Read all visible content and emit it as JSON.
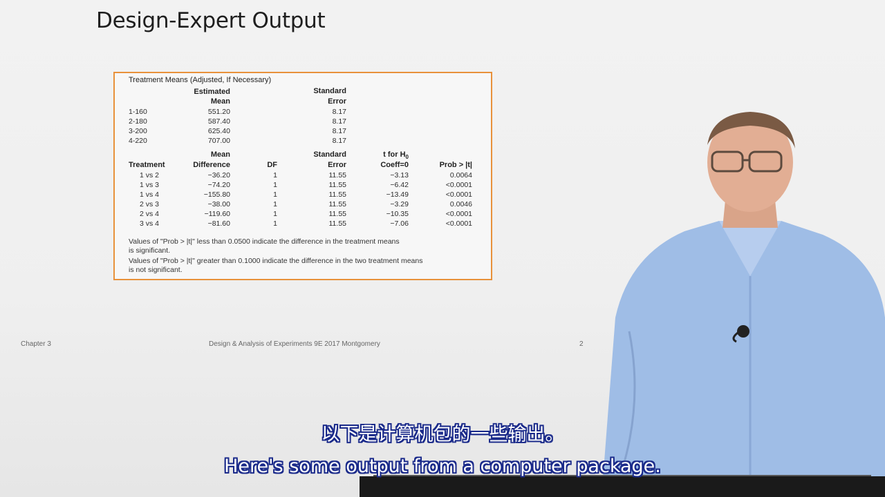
{
  "slide": {
    "title": "Design-Expert Output",
    "footer_left": "Chapter 3",
    "footer_center": "Design & Analysis of Experiments 9E 2017 Montgomery",
    "footer_right": "2"
  },
  "output": {
    "heading": "Treatment Means (Adjusted, If Necessary)",
    "means_headers": {
      "est_line1": "Estimated",
      "est_line2": "Mean",
      "se_line1": "Standard",
      "se_line2": "Error"
    },
    "means": [
      {
        "label": "1-160",
        "mean": "551.20",
        "se": "8.17"
      },
      {
        "label": "2-180",
        "mean": "587.40",
        "se": "8.17"
      },
      {
        "label": "3-200",
        "mean": "625.40",
        "se": "8.17"
      },
      {
        "label": "4-220",
        "mean": "707.00",
        "se": "8.17"
      }
    ],
    "diff_headers": {
      "treatment": "Treatment",
      "md_line1": "Mean",
      "md_line2": "Difference",
      "df": "DF",
      "se_line1": "Standard",
      "se_line2": "Error",
      "t_line1": "t for H",
      "t_sub": "0",
      "t_line2": "Coeff=0",
      "prob": "Prob > |t|"
    },
    "diffs": [
      {
        "treatment": "1 vs 2",
        "diff": "−36.20",
        "df": "1",
        "se": "11.55",
        "t": "−3.13",
        "prob": "0.0064"
      },
      {
        "treatment": "1 vs 3",
        "diff": "−74.20",
        "df": "1",
        "se": "11.55",
        "t": "−6.42",
        "prob": "<0.0001"
      },
      {
        "treatment": "1 vs 4",
        "diff": "−155.80",
        "df": "1",
        "se": "11.55",
        "t": "−13.49",
        "prob": "<0.0001"
      },
      {
        "treatment": "2 vs 3",
        "diff": "−38.00",
        "df": "1",
        "se": "11.55",
        "t": "−3.29",
        "prob": "0.0046"
      },
      {
        "treatment": "2 vs 4",
        "diff": "−119.60",
        "df": "1",
        "se": "11.55",
        "t": "−10.35",
        "prob": "<0.0001"
      },
      {
        "treatment": "3 vs 4",
        "diff": "−81.60",
        "df": "1",
        "se": "11.55",
        "t": "−7.06",
        "prob": "<0.0001"
      }
    ],
    "note1_line1": "Values of \"Prob > |t|\" less than 0.0500 indicate the difference in the treatment means",
    "note1_line2": "is significant.",
    "note2_line1": "Values of \"Prob > |t|\" greater than 0.1000 indicate the difference in the two treatment means",
    "note2_line2": "is not significant."
  },
  "subtitles": {
    "zh": "以下是计算机包的一些输出。",
    "en": "Here's some output from a computer package."
  },
  "colors": {
    "box_border": "#e8913a",
    "subtitle_outline": "#1a2a8a",
    "shirt": "#9fbde6"
  }
}
